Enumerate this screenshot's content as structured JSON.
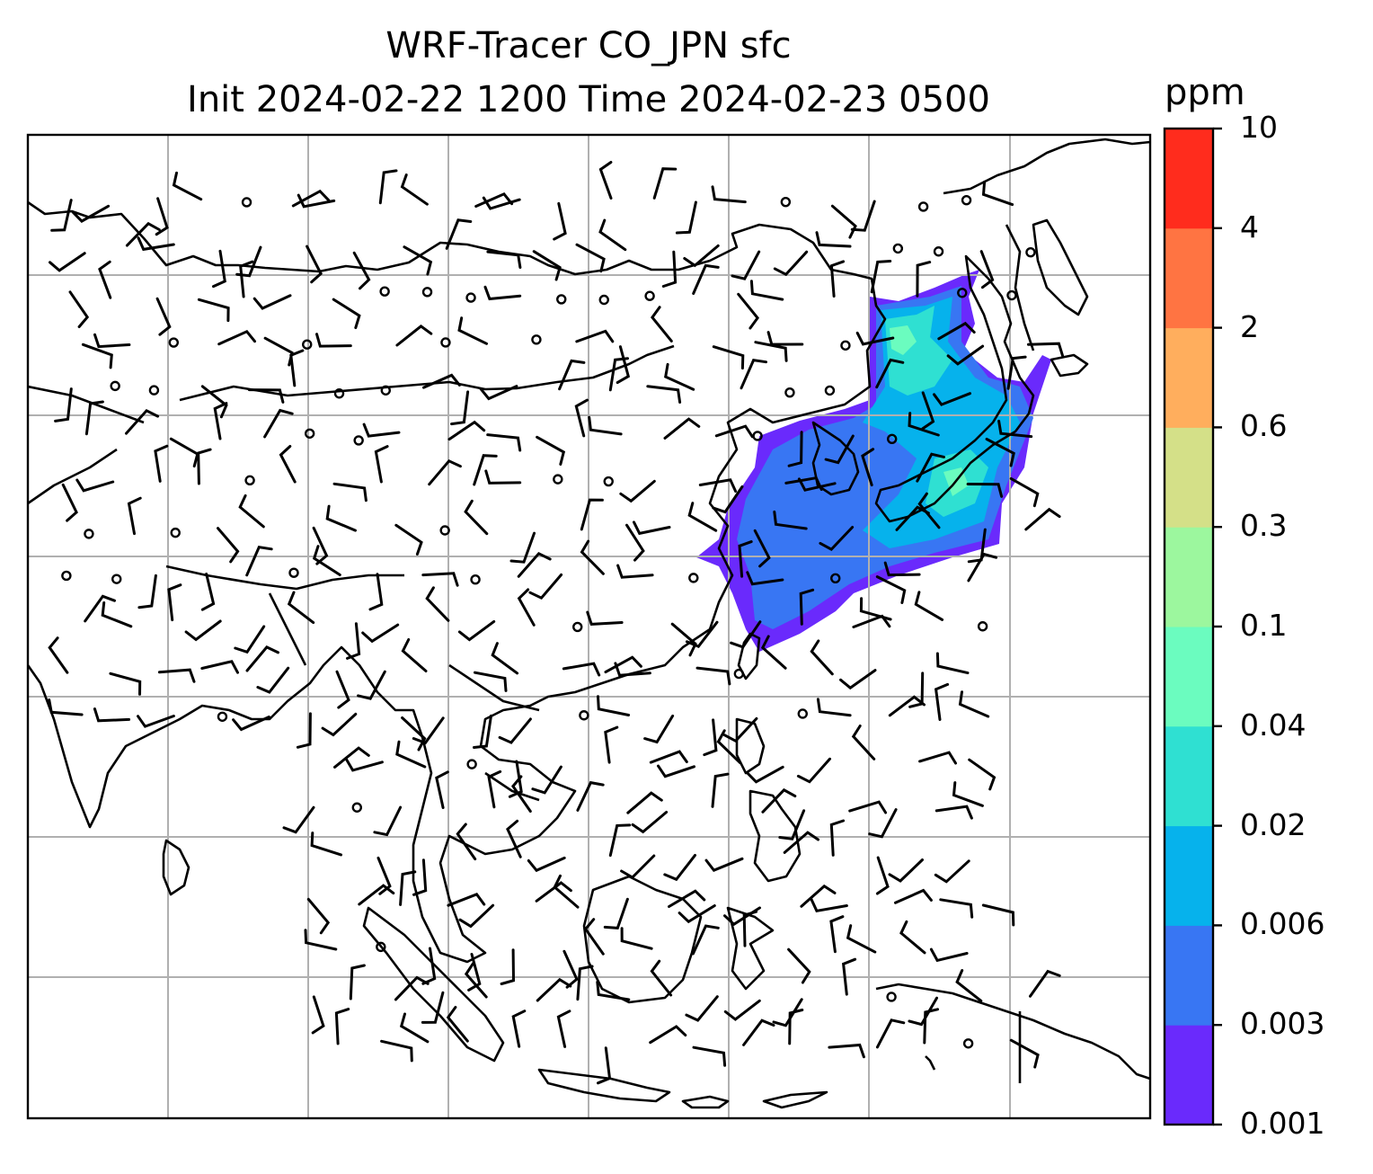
{
  "title": {
    "line1": "WRF-Tracer CO_JPN sfc",
    "line2": "Init 2024-02-22 1200 Time 2024-02-23 0500"
  },
  "colorbar": {
    "units": "ppm",
    "levels": [
      "0.001",
      "0.003",
      "0.006",
      "0.02",
      "0.04",
      "0.1",
      "0.3",
      "0.6",
      "2",
      "4",
      "10"
    ],
    "colors": [
      "#6a2afc",
      "#3876f3",
      "#06b2ec",
      "#2fe0d2",
      "#6bfcbf",
      "#9cf79e",
      "#d4e088",
      "#ffae5d",
      "#ff7442",
      "#ff2c1d"
    ]
  },
  "map": {
    "region": "East and Southeast Asia",
    "plume_colors": {
      "outer": "#6a2afc",
      "inner": "#3876f3",
      "core": "#06b2ec",
      "peak": "#2fe0d2",
      "hot": "#6bfcbf"
    },
    "icons": [
      "wind-barb-icon",
      "calm-wind-circle-icon"
    ]
  }
}
